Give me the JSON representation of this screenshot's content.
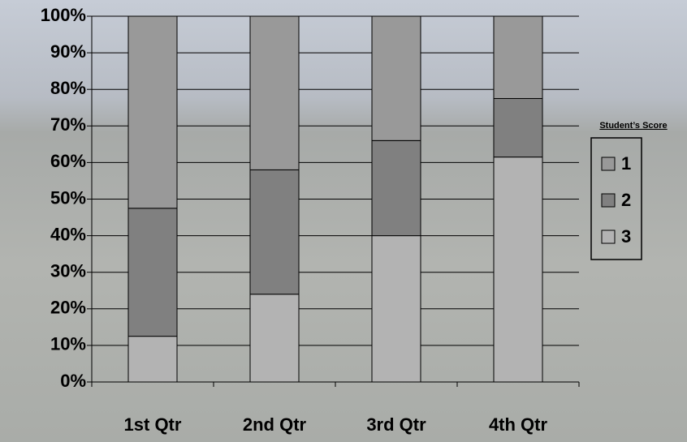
{
  "chart_data": {
    "type": "stacked_bar",
    "categories": [
      "1st Qtr",
      "2nd Qtr",
      "3rd Qtr",
      "4th Qtr"
    ],
    "series": [
      {
        "name": "1",
        "color": "#999999",
        "values": [
          52.5,
          42,
          34,
          22.5
        ]
      },
      {
        "name": "2",
        "color": "#808080",
        "values": [
          35,
          34,
          26,
          16
        ]
      },
      {
        "name": "3",
        "color": "#b3b3b3",
        "values": [
          12.5,
          24,
          40,
          61.5
        ]
      }
    ],
    "ylim": [
      0,
      100
    ],
    "yticks": [
      {
        "value": 0,
        "label": "0%"
      },
      {
        "value": 10,
        "label": "10%"
      },
      {
        "value": 20,
        "label": "20%"
      },
      {
        "value": 30,
        "label": "30%"
      },
      {
        "value": 40,
        "label": "40%"
      },
      {
        "value": 50,
        "label": "50%"
      },
      {
        "value": 60,
        "label": "60%"
      },
      {
        "value": 70,
        "label": "70%"
      },
      {
        "value": 80,
        "label": "80%"
      },
      {
        "value": 90,
        "label": "90%"
      },
      {
        "value": 100,
        "label": "100%"
      }
    ],
    "grid": true,
    "legend_title": "Student’s Score",
    "legend_position": "right"
  }
}
